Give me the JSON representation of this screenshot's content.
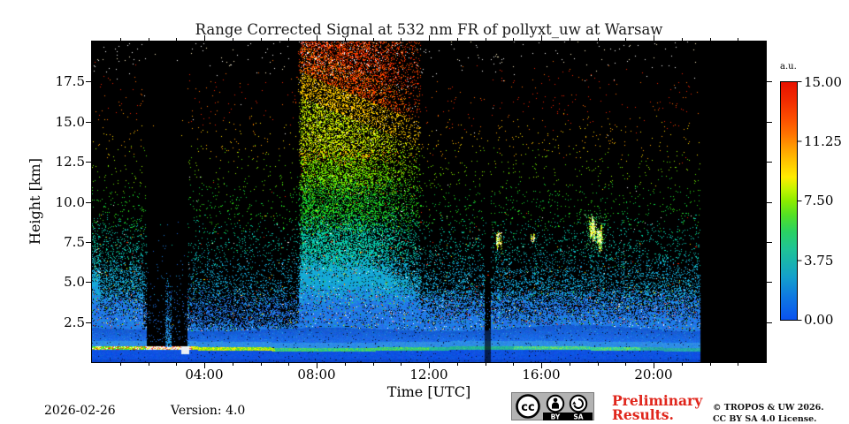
{
  "title": "Range Corrected Signal at 532 nm FR of pollyxt_uw at Warsaw",
  "footer": {
    "date": "2026-02-26",
    "version": "Version: 4.0",
    "preliminary_line1": "Preliminary",
    "preliminary_line2": "Results.",
    "copyright_line1": "© TROPOS & UW 2026.",
    "copyright_line2": "CC BY SA 4.0 License.",
    "cc_badge": {
      "cc_label": "cc",
      "by_label": "BY",
      "sa_label": "SA"
    }
  },
  "chart_data": {
    "type": "heatmap",
    "title": "Range Corrected Signal at 532 nm FR of pollyxt_uw at Warsaw",
    "xlabel": "Time [UTC]",
    "ylabel": "Height [km]",
    "x_range_hours": [
      0,
      24
    ],
    "x_major_tick_hours": [
      4,
      8,
      12,
      16,
      20
    ],
    "x_tick_labels": [
      "04:00",
      "08:00",
      "12:00",
      "16:00",
      "20:00"
    ],
    "x_minor_tick_step_hours": 1,
    "y_range_km": [
      0,
      20
    ],
    "y_major_ticks_km": [
      2.5,
      5.0,
      7.5,
      10.0,
      12.5,
      15.0,
      17.5
    ],
    "y_tick_labels": [
      "2.5",
      "5.0",
      "7.5",
      "10.0",
      "12.5",
      "15.0",
      "17.5"
    ],
    "colorbar": {
      "unit": "a.u.",
      "min": 0,
      "max": 15,
      "tick_values": [
        15.0,
        11.25,
        7.5,
        3.75,
        0.0
      ],
      "tick_labels": [
        "15.00",
        "11.25",
        "7.50",
        "3.75",
        "0.00"
      ],
      "colormap": "jet-like",
      "stops": [
        [
          "#0a52f0",
          0
        ],
        [
          "#0f7ae0",
          0.1
        ],
        [
          "#14a0cc",
          0.18
        ],
        [
          "#1ab6ab",
          0.25
        ],
        [
          "#20c495",
          0.3
        ],
        [
          "#2ad163",
          0.37
        ],
        [
          "#52e026",
          0.44
        ],
        [
          "#8cec00",
          0.5
        ],
        [
          "#c4f400",
          0.55
        ],
        [
          "#ffec00",
          0.6
        ],
        [
          "#ffc800",
          0.66
        ],
        [
          "#ffa000",
          0.72
        ],
        [
          "#ff7400",
          0.78
        ],
        [
          "#fc4c00",
          0.85
        ],
        [
          "#f02800",
          0.93
        ],
        [
          "#e81200",
          1
        ]
      ]
    },
    "measurement_end_utc": 21.67,
    "features": {
      "surface_aerosol_layer": {
        "top_km": 2.05,
        "signal_au": "0.5-2"
      },
      "boundary_bright_line": {
        "height_km": 0.85,
        "signal_au": "7-15"
      },
      "calibration_gap_1_utc": [
        1.95,
        3.4
      ],
      "calibration_gap_1_top_of_kept_layer_km": 0.95,
      "calibration_gap_1_dotted_column_utc": [
        2.63,
        2.83
      ],
      "calibration_gap_2_utc": [
        13.97,
        14.2
      ],
      "white_saturation_block": {
        "t_utc": [
          3.15,
          3.46
        ],
        "h_km": [
          0.5,
          1.02
        ]
      },
      "daytime_noise_fan_utc": [
        7.33,
        11.7
      ],
      "night_noise_boost_utc": [
        0,
        1.8
      ],
      "clouds": [
        {
          "t": 14.49,
          "h": 7.7,
          "dt": 0.09,
          "dh": 0.65,
          "streaks": 6,
          "core_n": 40
        },
        {
          "t": 15.7,
          "h": 7.7,
          "dt": 0.07,
          "dh": 0.38,
          "streaks": 4,
          "core_n": 18
        },
        {
          "t": 17.83,
          "h": 8.3,
          "dt": 0.11,
          "dh": 0.7,
          "streaks": 11,
          "core_n": 90
        },
        {
          "t": 18.07,
          "h": 7.8,
          "dt": 0.11,
          "dh": 0.72,
          "streaks": 11,
          "core_n": 90
        }
      ],
      "cloud_halo": {
        "t": 17.95,
        "h": 8.2,
        "dt": 0.35,
        "dh": 1.1,
        "n": 130
      }
    },
    "render": {
      "seed": 20260226,
      "density_h": [
        0,
        2.05,
        2.45,
        3.2,
        4.5,
        6,
        8,
        10,
        12.5,
        15,
        17,
        20
      ],
      "density_p": [
        0.82,
        0.78,
        0.48,
        0.38,
        0.23,
        0.1,
        0.053,
        0.028,
        0.019,
        0.013,
        0.01,
        0.0085
      ],
      "density_cap": 0.92,
      "palette": [
        {
          "min": 18.2,
          "colors": [
            "#fafafa",
            "#fff0c0",
            "#ffffff"
          ]
        },
        {
          "min": 15.0,
          "colors": [
            "#f52500",
            "#ff6a00",
            "#f02000"
          ]
        },
        {
          "min": 13.0,
          "colors": [
            "#ffa200",
            "#ffdf00"
          ]
        },
        {
          "min": 11.0,
          "colors": [
            "#9cf000",
            "#58e000"
          ]
        },
        {
          "min": 8.6,
          "colors": [
            "#2edc12",
            "#0fd448"
          ]
        },
        {
          "min": 6.4,
          "colors": [
            "#00cfa0",
            "#12c4bc"
          ]
        },
        {
          "min": 4.2,
          "colors": [
            "#12a2dc",
            "#18b0d0"
          ]
        },
        {
          "min": 0,
          "colors": [
            "#1a7ce8",
            "#2a66ee",
            "#1f8ee0"
          ]
        }
      ],
      "anomaly_colors": [
        "#f52500",
        "#ffe000",
        "#ffffff",
        "#30dc30"
      ],
      "night_boost_h": [
        0,
        4,
        6,
        8,
        10,
        20
      ],
      "night_boost_f": [
        1.95,
        2.1,
        2.4,
        2.0,
        1.15,
        1.1
      ],
      "night_t_max": 1.8,
      "night_edge": {
        "t": 0.28,
        "h": 8.5,
        "factor": 2.0
      },
      "fan": {
        "t0": 7.33,
        "t1": 11.7,
        "rise": 0.15,
        "hold_until": 9.6,
        "end_factor": 0.18,
        "hot_h": 13.2,
        "boost_h": [
          0,
          7,
          9,
          10,
          12,
          14,
          16,
          18,
          20
        ],
        "boost_v": [
          6,
          7,
          10,
          14,
          22,
          28,
          36,
          46,
          52
        ]
      },
      "afternoon": {
        "t0": 11.7,
        "bands_h": [
          4.5,
          7,
          9
        ],
        "factors": [
          1.8,
          1.35,
          1.15
        ]
      },
      "line_segments": [
        {
          "t": 1.9,
          "colors": [
            "#66e800",
            "#66e800",
            "#ffee00",
            "#ff3300",
            "#ffffff",
            "#2edc60"
          ]
        },
        {
          "t": 3.55,
          "colors": [
            "#ffffff",
            "#ffffff",
            "#f2f2e0",
            "#ffee00",
            "#ff5030"
          ]
        },
        {
          "t": 6.5,
          "colors": [
            "#c8f000",
            "#8ae800",
            "#ffee00",
            "#48d848"
          ]
        },
        {
          "t": 12.0,
          "colors": [
            "#30cc80",
            "#28bc94",
            "#58d850"
          ]
        },
        {
          "t": 15.0,
          "colors": [
            "#28bc90",
            "#22aca0"
          ]
        },
        {
          "t": 19.5,
          "colors": [
            "#38d09c",
            "#30c7a4",
            "#70e060"
          ]
        },
        {
          "t": 24.1,
          "colors": [
            "#28b0a4",
            "#24a0ac"
          ]
        }
      ]
    }
  }
}
